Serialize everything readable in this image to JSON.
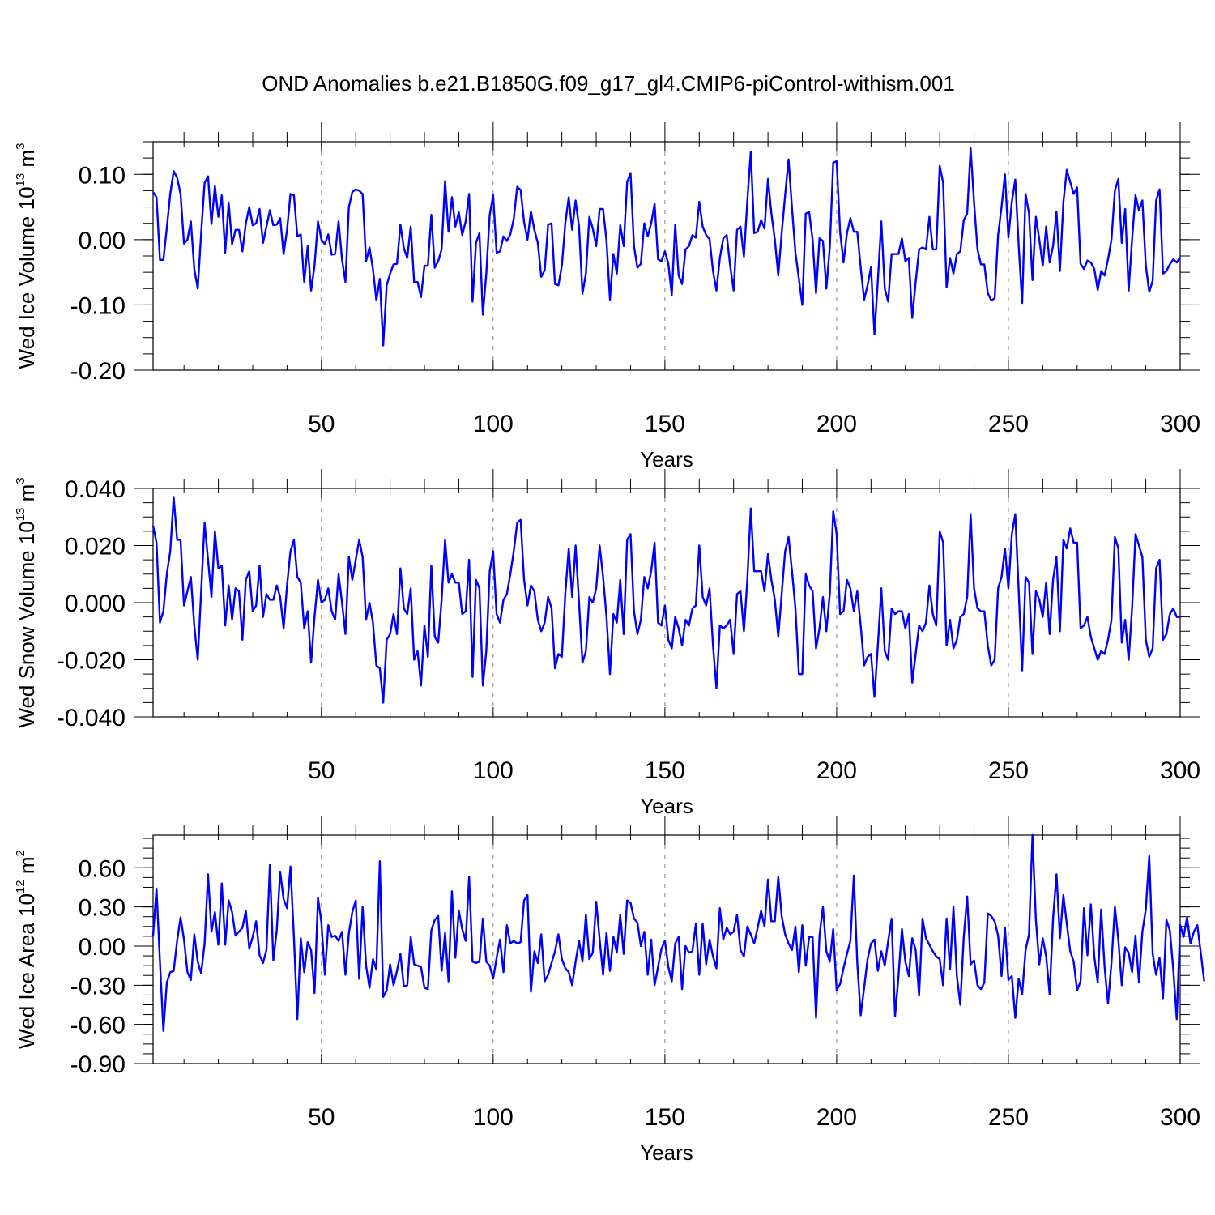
{
  "title": "OND Anomalies b.e21.B1850G.f09_g17_gl4.CMIP6-piControl-withism.001",
  "colors": {
    "series": "#0000ff",
    "axis": "#000000",
    "grid": "#808080"
  },
  "chart_data": [
    {
      "type": "line",
      "ylabel": {
        "main": "Wed Ice Volume 10",
        "exp": "13",
        "unit": " m",
        "unit_exp": "3"
      },
      "xlabel": "Years",
      "xlim": [
        1,
        300
      ],
      "ylim": [
        -0.2,
        0.15
      ],
      "xticks": [
        "50",
        "100",
        "150",
        "200",
        "250",
        "300"
      ],
      "yticks": [
        "0.10",
        "0.00",
        "-0.10",
        "-0.20"
      ],
      "x_start": 1,
      "values": [
        0.073,
        0.065,
        -0.031,
        -0.031,
        0.018,
        0.07,
        0.105,
        0.095,
        0.07,
        -0.006,
        0.0,
        0.028,
        -0.045,
        -0.075,
        0.01,
        0.087,
        0.097,
        0.024,
        0.082,
        0.035,
        0.068,
        -0.02,
        0.057,
        -0.007,
        0.015,
        0.015,
        -0.018,
        0.025,
        0.05,
        0.022,
        0.025,
        0.047,
        -0.005,
        0.02,
        0.045,
        0.022,
        0.023,
        0.033,
        -0.022,
        0.015,
        0.07,
        0.068,
        0.005,
        0.008,
        -0.065,
        -0.01,
        -0.078,
        -0.04,
        0.028,
        0.0,
        -0.007,
        0.008,
        -0.023,
        -0.022,
        0.028,
        -0.03,
        -0.065,
        0.05,
        0.073,
        0.077,
        0.075,
        0.07,
        -0.033,
        -0.012,
        -0.045,
        -0.093,
        -0.06,
        -0.162,
        -0.07,
        -0.052,
        -0.038,
        -0.037,
        0.023,
        -0.013,
        -0.028,
        0.02,
        -0.065,
        -0.065,
        -0.088,
        -0.04,
        -0.04,
        0.038,
        -0.043,
        -0.033,
        -0.015,
        0.09,
        0.012,
        0.065,
        0.02,
        0.042,
        0.007,
        0.028,
        0.07,
        -0.095,
        -0.005,
        0.01,
        -0.115,
        -0.052,
        0.038,
        0.068,
        -0.02,
        -0.018,
        0.005,
        -0.002,
        0.008,
        0.032,
        0.081,
        0.076,
        0.027,
        0.0,
        0.043,
        0.015,
        -0.005,
        -0.057,
        -0.047,
        0.023,
        0.025,
        -0.068,
        -0.07,
        -0.04,
        0.025,
        0.065,
        0.015,
        0.06,
        0.02,
        -0.083,
        -0.052,
        0.035,
        0.017,
        -0.01,
        0.047,
        0.047,
        -0.002,
        -0.092,
        -0.022,
        -0.052,
        0.022,
        -0.01,
        0.088,
        0.102,
        -0.01,
        -0.043,
        -0.037,
        0.025,
        0.005,
        0.025,
        0.055,
        -0.03,
        -0.033,
        -0.018,
        -0.037,
        -0.085,
        0.023,
        -0.055,
        -0.068,
        -0.015,
        -0.01,
        0.007,
        0.003,
        0.058,
        0.02,
        0.007,
        0.001,
        -0.048,
        -0.078,
        -0.028,
        0.002,
        0.007,
        -0.04,
        -0.078,
        0.015,
        0.02,
        -0.026,
        0.06,
        0.135,
        0.01,
        0.012,
        0.03,
        0.017,
        0.093,
        0.04,
        0.0,
        -0.055,
        0.01,
        0.068,
        0.123,
        0.048,
        -0.02,
        -0.06,
        -0.1,
        0.04,
        0.042,
        0.0,
        -0.082,
        0.002,
        -0.002,
        -0.075,
        -0.012,
        0.118,
        0.12,
        0.012,
        -0.035,
        0.01,
        0.033,
        0.012,
        0.012,
        -0.043,
        -0.092,
        -0.07,
        -0.042,
        -0.145,
        -0.062,
        0.028,
        -0.075,
        -0.095,
        -0.022,
        -0.022,
        -0.022,
        0.002,
        -0.033,
        -0.028,
        -0.12,
        -0.065,
        -0.015,
        -0.012,
        -0.015,
        0.035,
        -0.015,
        -0.015,
        0.113,
        0.087,
        -0.073,
        -0.028,
        -0.052,
        -0.022,
        -0.018,
        0.03,
        0.04,
        0.14,
        0.057,
        -0.015,
        -0.038,
        -0.038,
        -0.082,
        -0.093,
        -0.09,
        0.007,
        0.05,
        0.1,
        0.003,
        0.058,
        0.092,
        -0.01,
        -0.097,
        0.07,
        0.04,
        -0.062,
        0.035,
        0.0,
        -0.04,
        0.02,
        -0.035,
        -0.01,
        0.043,
        -0.048,
        0.057,
        0.107,
        0.088,
        0.07,
        0.08,
        -0.037,
        -0.045,
        -0.032,
        -0.035,
        -0.045,
        -0.077,
        -0.048,
        -0.055,
        -0.03,
        0.0,
        0.075,
        0.093,
        -0.005,
        0.047,
        -0.078,
        0.0,
        0.068,
        0.045,
        0.06,
        -0.04,
        -0.08,
        -0.063,
        0.06,
        0.077,
        -0.052,
        -0.048,
        -0.038,
        -0.03,
        -0.035,
        -0.027
      ]
    },
    {
      "type": "line",
      "ylabel": {
        "main": "Wed Snow Volume 10",
        "exp": "13",
        "unit": " m",
        "unit_exp": "3"
      },
      "xlabel": "Years",
      "xlim": [
        1,
        300
      ],
      "ylim": [
        -0.04,
        0.04
      ],
      "xticks": [
        "50",
        "100",
        "150",
        "200",
        "250",
        "300"
      ],
      "yticks": [
        "0.040",
        "0.020",
        "0.000",
        "-0.020",
        "-0.040"
      ],
      "x_start": 1,
      "values": [
        0.027,
        0.021,
        -0.007,
        -0.003,
        0.01,
        0.018,
        0.037,
        0.022,
        0.022,
        -0.001,
        0.004,
        0.009,
        -0.008,
        -0.02,
        0.004,
        0.028,
        0.015,
        0.002,
        0.025,
        0.012,
        0.013,
        -0.008,
        0.006,
        -0.006,
        0.005,
        0.004,
        -0.013,
        0.008,
        0.011,
        -0.003,
        -0.001,
        0.013,
        -0.005,
        0.003,
        0.001,
        0.001,
        0.006,
        0.002,
        -0.009,
        0.006,
        0.018,
        0.022,
        0.009,
        0.007,
        -0.009,
        -0.003,
        -0.021,
        -0.005,
        0.008,
        0.0,
        0.001,
        0.005,
        -0.003,
        -0.006,
        0.01,
        0.0,
        -0.011,
        0.016,
        0.008,
        0.015,
        0.022,
        0.016,
        -0.006,
        0.0,
        -0.007,
        -0.022,
        -0.023,
        -0.035,
        -0.013,
        -0.011,
        -0.004,
        -0.011,
        0.012,
        -0.002,
        -0.004,
        0.005,
        -0.02,
        -0.017,
        -0.029,
        -0.008,
        -0.019,
        0.013,
        -0.012,
        -0.014,
        0.001,
        0.022,
        0.007,
        0.01,
        0.007,
        0.007,
        -0.004,
        -0.003,
        0.015,
        -0.026,
        0.008,
        0.005,
        -0.029,
        -0.017,
        0.011,
        0.018,
        -0.004,
        -0.007,
        0.001,
        0.003,
        0.01,
        0.018,
        0.028,
        0.029,
        0.008,
        -0.001,
        0.006,
        0.004,
        -0.006,
        -0.01,
        -0.007,
        0.002,
        -0.002,
        -0.023,
        -0.018,
        -0.019,
        0.003,
        0.019,
        0.002,
        0.02,
        0.0,
        -0.021,
        -0.017,
        0.002,
        0.0,
        0.005,
        0.02,
        0.009,
        -0.005,
        -0.025,
        -0.004,
        -0.007,
        0.008,
        -0.011,
        0.022,
        0.024,
        -0.003,
        -0.011,
        -0.006,
        0.009,
        0.005,
        0.011,
        0.021,
        -0.007,
        -0.008,
        -0.001,
        -0.013,
        -0.016,
        -0.005,
        -0.009,
        -0.015,
        -0.006,
        -0.008,
        -0.002,
        -0.001,
        0.02,
        0.002,
        -0.001,
        0.005,
        -0.015,
        -0.03,
        -0.008,
        -0.009,
        -0.008,
        -0.006,
        -0.018,
        0.003,
        0.004,
        -0.01,
        0.008,
        0.033,
        0.011,
        0.011,
        0.011,
        0.004,
        0.017,
        0.008,
        0.001,
        -0.012,
        0.003,
        0.018,
        0.023,
        0.011,
        -0.002,
        -0.025,
        -0.025,
        0.01,
        0.006,
        0.004,
        -0.016,
        -0.009,
        0.002,
        -0.01,
        0.003,
        0.032,
        0.024,
        -0.004,
        -0.003,
        0.008,
        0.005,
        -0.003,
        0.004,
        -0.008,
        -0.022,
        -0.019,
        -0.018,
        -0.033,
        -0.015,
        0.005,
        -0.017,
        -0.02,
        -0.002,
        -0.004,
        -0.003,
        -0.003,
        -0.009,
        -0.004,
        -0.028,
        -0.018,
        -0.008,
        -0.01,
        -0.007,
        0.006,
        -0.004,
        -0.008,
        0.025,
        0.021,
        -0.015,
        -0.006,
        -0.016,
        -0.013,
        -0.005,
        -0.004,
        0.002,
        0.031,
        0.005,
        -0.002,
        -0.003,
        -0.003,
        -0.015,
        -0.022,
        -0.02,
        0.005,
        0.009,
        0.019,
        0.005,
        0.024,
        0.031,
        0.004,
        -0.024,
        0.009,
        0.007,
        -0.018,
        0.004,
        0.001,
        -0.005,
        0.007,
        -0.011,
        0.008,
        0.016,
        -0.01,
        0.022,
        0.019,
        0.026,
        0.021,
        0.021,
        -0.009,
        -0.008,
        -0.005,
        -0.012,
        -0.016,
        -0.02,
        -0.017,
        -0.018,
        -0.013,
        -0.006,
        0.023,
        0.019,
        -0.014,
        -0.006,
        -0.02,
        -0.002,
        0.024,
        0.02,
        0.016,
        -0.013,
        -0.019,
        -0.016,
        0.012,
        0.015,
        -0.013,
        -0.011,
        -0.004,
        -0.002,
        -0.005,
        -0.005
      ]
    },
    {
      "type": "line",
      "ylabel": {
        "main": "Wed Ice Area 10",
        "exp": "12",
        "unit": " m",
        "unit_exp": "2"
      },
      "xlabel": "Years",
      "xlim": [
        1,
        300
      ],
      "ylim": [
        -0.9,
        0.85
      ],
      "xticks": [
        "50",
        "100",
        "150",
        "200",
        "250",
        "300"
      ],
      "yticks": [
        "0.60",
        "0.30",
        "0.00",
        "-0.30",
        "-0.60",
        "-0.90"
      ],
      "x_start": 1,
      "values": [
        0.08,
        0.44,
        -0.12,
        -0.65,
        -0.28,
        -0.2,
        -0.19,
        0.04,
        0.22,
        0.05,
        -0.2,
        -0.26,
        0.09,
        -0.12,
        -0.21,
        0.02,
        0.55,
        0.11,
        0.26,
        0.01,
        0.48,
        0.01,
        0.35,
        0.26,
        0.08,
        0.11,
        0.14,
        0.27,
        -0.02,
        0.07,
        0.19,
        -0.07,
        -0.13,
        -0.03,
        0.62,
        -0.11,
        0.12,
        0.57,
        0.36,
        0.29,
        0.61,
        0.07,
        -0.56,
        0.06,
        -0.2,
        0.03,
        -0.03,
        -0.36,
        0.37,
        0.18,
        -0.22,
        0.16,
        0.07,
        0.08,
        0.04,
        0.11,
        -0.22,
        0.1,
        0.26,
        0.35,
        -0.25,
        0.3,
        -0.15,
        -0.32,
        -0.1,
        -0.18,
        0.65,
        -0.39,
        -0.34,
        -0.14,
        -0.3,
        -0.19,
        -0.06,
        -0.31,
        -0.3,
        0.07,
        -0.14,
        -0.15,
        -0.16,
        -0.32,
        -0.33,
        0.12,
        0.2,
        0.23,
        -0.19,
        0.1,
        -0.27,
        0.42,
        -0.09,
        0.27,
        0.13,
        0.04,
        0.53,
        -0.12,
        -0.13,
        -0.12,
        0.21,
        -0.12,
        -0.15,
        -0.25,
        -0.09,
        0.05,
        -0.2,
        0.16,
        0.02,
        0.04,
        0.02,
        0.03,
        0.35,
        0.39,
        -0.35,
        -0.04,
        -0.13,
        0.09,
        -0.27,
        -0.22,
        -0.13,
        -0.04,
        0.09,
        -0.1,
        -0.17,
        -0.2,
        -0.3,
        -0.12,
        0.04,
        -0.12,
        0.24,
        -0.1,
        -0.05,
        0.34,
        0.05,
        -0.22,
        0.1,
        -0.19,
        0.07,
        -0.05,
        0.24,
        -0.06,
        0.35,
        0.33,
        0.21,
        0.18,
        0.0,
        0.11,
        -0.22,
        0.05,
        -0.3,
        -0.16,
        -0.02,
        0.04,
        -0.16,
        -0.27,
        0.02,
        0.07,
        -0.33,
        0.0,
        -0.05,
        -0.04,
        0.17,
        -0.22,
        0.17,
        -0.14,
        0.05,
        -0.08,
        -0.17,
        0.29,
        0.05,
        0.14,
        0.09,
        0.11,
        0.24,
        -0.03,
        -0.08,
        0.15,
        0.09,
        0.02,
        0.14,
        0.27,
        0.15,
        0.51,
        0.19,
        0.19,
        0.53,
        0.23,
        0.09,
        0.02,
        -0.03,
        0.15,
        -0.2,
        0.16,
        -0.15,
        0.07,
        0.07,
        -0.55,
        0.08,
        0.3,
        -0.04,
        -0.12,
        0.13,
        -0.34,
        -0.29,
        -0.17,
        -0.06,
        0.04,
        0.54,
        -0.13,
        -0.53,
        -0.32,
        -0.1,
        0.02,
        0.05,
        -0.19,
        -0.04,
        -0.15,
        0.04,
        0.21,
        -0.54,
        -0.23,
        0.13,
        -0.12,
        -0.23,
        0.06,
        -0.03,
        -0.38,
        0.21,
        0.06,
        0.01,
        -0.04,
        -0.08,
        -0.1,
        -0.3,
        0.21,
        -0.18,
        0.3,
        -0.23,
        -0.45,
        0.07,
        0.38,
        -0.14,
        -0.11,
        -0.3,
        -0.33,
        -0.28,
        0.25,
        0.23,
        0.19,
        0.08,
        -0.23,
        0.14,
        -0.26,
        -0.23,
        -0.55,
        -0.25,
        -0.37,
        -0.03,
        0.09,
        0.85,
        0.2,
        -0.14,
        0.06,
        -0.08,
        -0.37,
        0.21,
        0.55,
        0.06,
        0.39,
        0.17,
        -0.04,
        -0.12,
        -0.34,
        -0.27,
        0.29,
        -0.07,
        0.32,
        -0.08,
        -0.28,
        0.28,
        -0.16,
        -0.44,
        -0.13,
        0.3,
        0.05,
        -0.3,
        -0.01,
        -0.05,
        -0.2,
        0.08,
        -0.28,
        0.11,
        0.28,
        0.69,
        -0.06,
        -0.22,
        -0.09,
        -0.4,
        0.2,
        0.12,
        -0.18,
        -0.56,
        0.16,
        0.07,
        0.22,
        0.02,
        0.11,
        0.16,
        -0.05,
        -0.27
      ]
    }
  ]
}
